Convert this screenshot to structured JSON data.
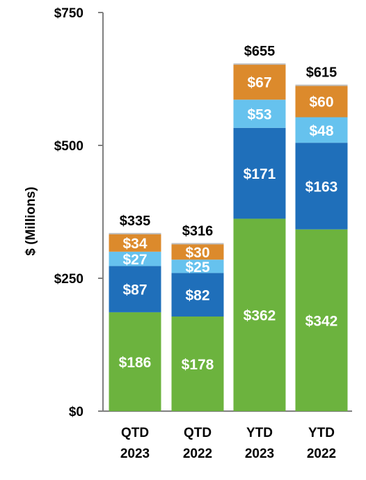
{
  "chart_data": {
    "type": "bar",
    "stacked": true,
    "ylabel": "$ (Millions)",
    "ylim": [
      0,
      750
    ],
    "yticks": [
      0,
      250,
      500,
      750
    ],
    "ytick_labels": [
      "$0",
      "$250",
      "$500",
      "$750"
    ],
    "grid": false,
    "legend": "none",
    "categories": [
      [
        "QTD",
        "2023"
      ],
      [
        "QTD",
        "2022"
      ],
      [
        "YTD",
        "2023"
      ],
      [
        "YTD",
        "2022"
      ]
    ],
    "series": [
      {
        "values": [
          186,
          178,
          362,
          342
        ],
        "labels": [
          "$186",
          "$178",
          "$362",
          "$342"
        ],
        "color": "#6cb33e"
      },
      {
        "values": [
          87,
          82,
          171,
          163
        ],
        "labels": [
          "$87",
          "$82",
          "$171",
          "$163"
        ],
        "color": "#1f6fba"
      },
      {
        "values": [
          27,
          25,
          53,
          48
        ],
        "labels": [
          "$27",
          "$25",
          "$53",
          "$48"
        ],
        "color": "#66c2ee"
      },
      {
        "values": [
          34,
          30,
          67,
          60
        ],
        "labels": [
          "$34",
          "$30",
          "$67",
          "$60"
        ],
        "color": "#dc8a2c"
      }
    ],
    "totals": [
      335,
      316,
      655,
      615
    ],
    "total_labels": [
      "$335",
      "$316",
      "$655",
      "$615"
    ]
  }
}
